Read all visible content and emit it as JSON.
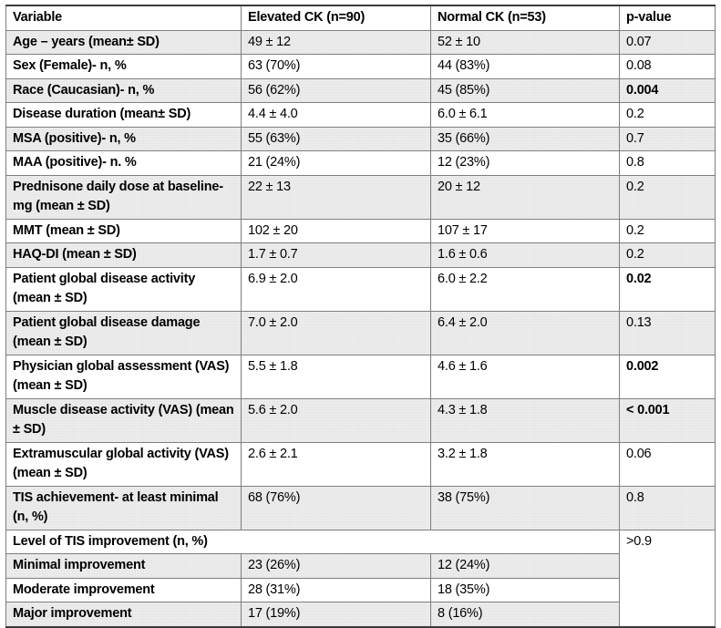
{
  "table": {
    "columns": [
      "Variable",
      "Elevated CK (n=90)",
      "Normal CK (n=53)",
      "p-value"
    ],
    "rows": [
      {
        "variable": "Age – years (mean± SD)",
        "elevated": "49 ± 12",
        "normal": "52 ± 10",
        "p": "0.07"
      },
      {
        "variable": "Sex (Female)- n, %",
        "elevated": "63 (70%)",
        "normal": "44 (83%)",
        "p": "0.08"
      },
      {
        "variable": "Race (Caucasian)- n, %",
        "elevated": "56 (62%)",
        "normal": "45 (85%)",
        "p": "0.004"
      },
      {
        "variable": "Disease duration (mean± SD)",
        "elevated": "4.4 ± 4.0",
        "normal": "6.0 ± 6.1",
        "p": "0.2"
      },
      {
        "variable": "MSA (positive)- n, %",
        "elevated": "55 (63%)",
        "normal": "35 (66%)",
        "p": "0.7"
      },
      {
        "variable": "MAA (positive)- n. %",
        "elevated": "21 (24%)",
        "normal": "12 (23%)",
        "p": "0.8"
      },
      {
        "variable": "Prednisone daily dose at baseline- mg (mean ± SD)",
        "elevated": "22 ± 13",
        "normal": "20 ± 12",
        "p": "0.2"
      },
      {
        "variable": "MMT (mean ± SD)",
        "elevated": "102 ± 20",
        "normal": "107 ± 17",
        "p": "0.2"
      },
      {
        "variable": "HAQ-DI (mean ± SD)",
        "elevated": "1.7 ± 0.7",
        "normal": "1.6 ± 0.6",
        "p": "0.2"
      },
      {
        "variable": "Patient global disease activity (mean ± SD)",
        "elevated": "6.9 ± 2.0",
        "normal": "6.0 ± 2.2",
        "p": "0.02"
      },
      {
        "variable": "Patient global disease damage (mean ± SD)",
        "elevated": "7.0 ± 2.0",
        "normal": "6.4 ± 2.0",
        "p": "0.13"
      },
      {
        "variable": "Physician global assessment (VAS) (mean ± SD)",
        "elevated": "5.5 ± 1.8",
        "normal": "4.6 ± 1.6",
        "p": "0.002"
      },
      {
        "variable": "Muscle disease activity (VAS) (mean ± SD)",
        "elevated": "5.6 ± 2.0",
        "normal": "4.3 ± 1.8",
        "p": "< 0.001"
      },
      {
        "variable": "Extramuscular global activity (VAS) (mean ± SD)",
        "elevated": "2.6 ± 2.1",
        "normal": "3.2 ± 1.8",
        "p": "0.06"
      },
      {
        "variable": "TIS achievement- at least minimal (n, %)",
        "elevated": "68 (76%)",
        "normal": "38 (75%)",
        "p": "0.8"
      }
    ],
    "tis_section": {
      "header": "Level of TIS improvement (n, %)",
      "p": ">0.9",
      "rows": [
        {
          "variable": "Minimal improvement",
          "elevated": "23 (26%)",
          "normal": "12 (24%)"
        },
        {
          "variable": "Moderate improvement",
          "elevated": "28 (31%)",
          "normal": "18 (35%)"
        },
        {
          "variable": "Major improvement",
          "elevated": "17 (19%)",
          "normal": "8 (16%)"
        }
      ]
    },
    "colors": {
      "shaded_row": "#e7e7e7",
      "inner_border": "#7f7f7f",
      "outer_border": "#3a3a3a",
      "text": "#000000"
    }
  }
}
